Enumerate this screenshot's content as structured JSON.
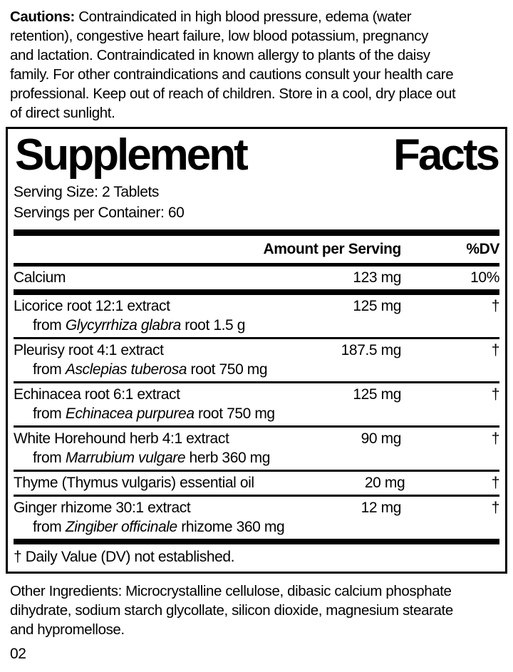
{
  "cautions": {
    "label": "Cautions:",
    "line1_rest": " Contraindicated in high blood pressure, edema (water",
    "lines": [
      "retention), congestive heart failure, low blood potassium, pregnancy",
      "and lactation. Contraindicated in known allergy to plants of the daisy",
      "family. For other contraindications and cautions consult your health care",
      "professional. Keep out of reach of children. Store in a cool, dry place out",
      "of direct sunlight."
    ]
  },
  "panel": {
    "title_word1": "Supplement",
    "title_word2": "Facts",
    "serving_size": "Serving Size: 2 Tablets",
    "servings_per_container": "Servings per Container: 60",
    "header": {
      "amount": "Amount per Serving",
      "dv": "%DV"
    },
    "calcium_row": {
      "name": "Calcium",
      "amount": "123 mg",
      "dv": "10%"
    },
    "rows": [
      {
        "name": "Licorice root 12:1 extract",
        "amount": "125 mg",
        "dv": "†",
        "sub_prefix": "from ",
        "sub_italic": "Glycyrrhiza glabra",
        "sub_suffix": " root 1.5 g"
      },
      {
        "name": "Pleurisy root 4:1 extract",
        "amount": "187.5 mg",
        "dv": "†",
        "sub_prefix": "from ",
        "sub_italic": "Asclepias tuberosa",
        "sub_suffix": " root 750 mg"
      },
      {
        "name": "Echinacea root 6:1 extract",
        "amount": "125 mg",
        "dv": "†",
        "sub_prefix": "from ",
        "sub_italic": "Echinacea purpurea",
        "sub_suffix": " root 750 mg"
      },
      {
        "name": "White Horehound herb 4:1 extract",
        "amount": "90 mg",
        "dv": "†",
        "sub_prefix": "from ",
        "sub_italic": "Marrubium vulgare",
        "sub_suffix": " herb 360 mg"
      },
      {
        "name": "Thyme (Thymus vulgaris) essential oil",
        "amount": "20 mg",
        "dv": "†"
      },
      {
        "name": "Ginger rhizome 30:1 extract",
        "amount": "12 mg",
        "dv": "†",
        "sub_prefix": "from ",
        "sub_italic": "Zingiber officinale",
        "sub_suffix": " rhizome 360 mg"
      }
    ],
    "footnote": "† Daily Value (DV) not established."
  },
  "other_ingredients": {
    "lines": [
      "Other Ingredients: Microcrystalline cellulose, dibasic calcium phosphate",
      "dihydrate, sodium starch glycollate, silicon dioxide, magnesium stearate",
      "and hypromellose."
    ]
  },
  "page_number": "02",
  "colors": {
    "text": "#000000",
    "background": "#ffffff"
  }
}
